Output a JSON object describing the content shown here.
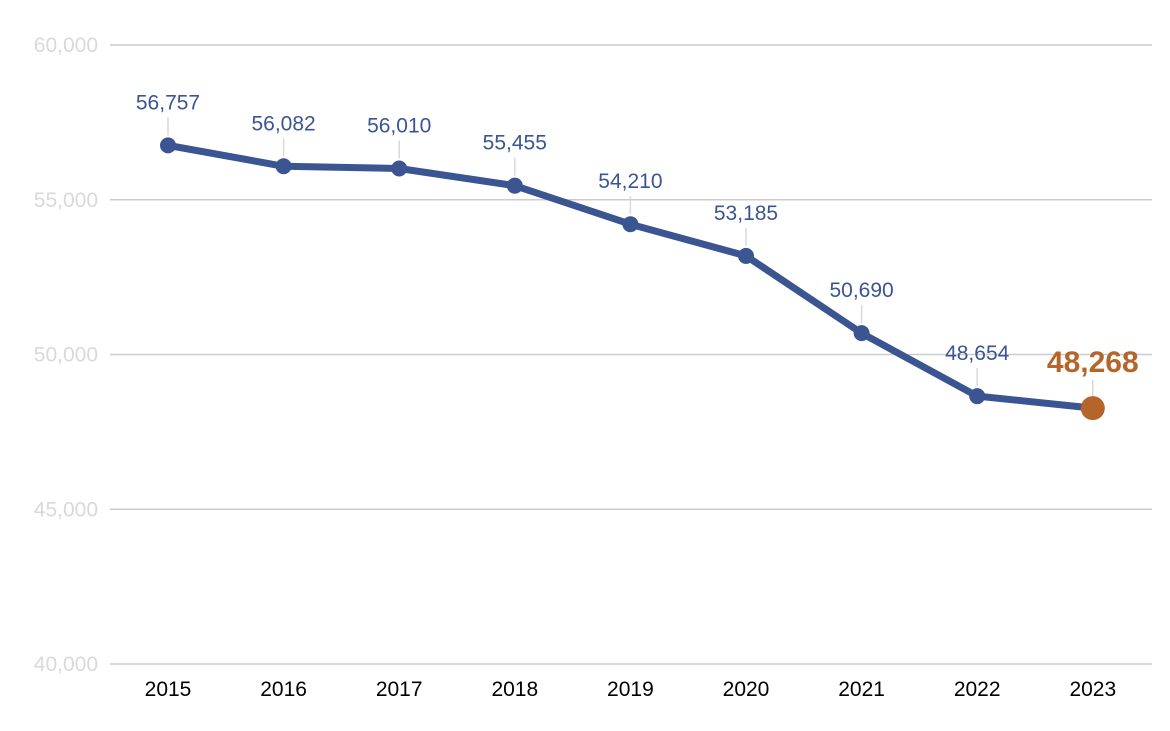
{
  "chart_data": {
    "type": "line",
    "title": "",
    "xlabel": "",
    "ylabel": "",
    "categories": [
      "2015",
      "2016",
      "2017",
      "2018",
      "2019",
      "2020",
      "2021",
      "2022",
      "2023"
    ],
    "series": [
      {
        "values": [
          56757,
          56082,
          56010,
          55455,
          54210,
          53185,
          50690,
          48654,
          48268
        ],
        "data_labels": [
          "56,757",
          "56,082",
          "56,010",
          "55,455",
          "54,210",
          "53,185",
          "50,690",
          "48,654",
          "48,268"
        ],
        "highlight_index": 8
      }
    ],
    "ylim": [
      40000,
      60000
    ],
    "yticks": [
      40000,
      45000,
      50000,
      55000,
      60000
    ],
    "ytick_labels": [
      "40,000",
      "45,000",
      "50,000",
      "55,000",
      "60,000"
    ],
    "grid": "horizontal",
    "legend": "none",
    "colors": {
      "line": "#3a5591",
      "highlight": "#b5652a",
      "grid": "#cccccc",
      "ytick_text": "#d9d9d9",
      "xtick_text": "#000000",
      "label_leader": "#d9d9d9"
    }
  }
}
